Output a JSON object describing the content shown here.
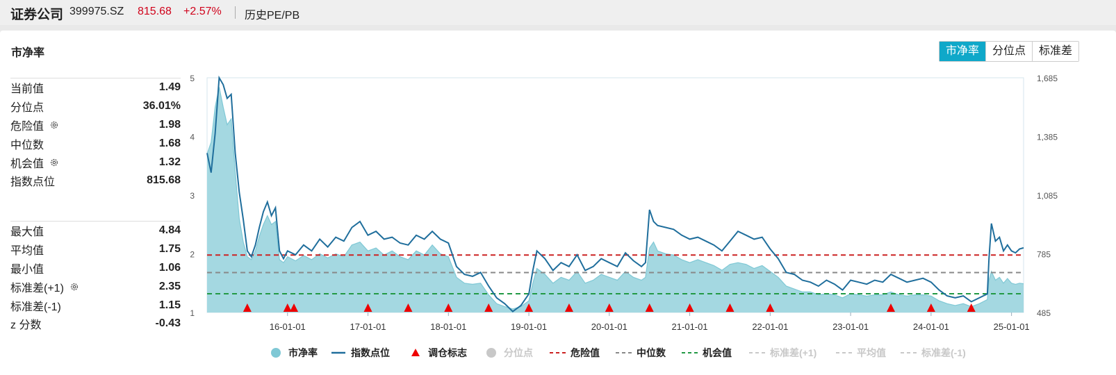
{
  "header": {
    "name": "证券公司",
    "code": "399975.SZ",
    "price": "815.68",
    "change": "+2.57%",
    "page": "历史PE/PB"
  },
  "panel": {
    "title": "市净率",
    "tabs": [
      "市净率",
      "分位点",
      "标准差"
    ],
    "active_tab": 0
  },
  "stats_top": [
    {
      "label": "当前值",
      "value": "1.49",
      "gear": false
    },
    {
      "label": "分位点",
      "value": "36.01%",
      "gear": false
    },
    {
      "label": "危险值",
      "value": "1.98",
      "gear": true
    },
    {
      "label": "中位数",
      "value": "1.68",
      "gear": false
    },
    {
      "label": "机会值",
      "value": "1.32",
      "gear": true
    },
    {
      "label": "指数点位",
      "value": "815.68",
      "gear": false
    }
  ],
  "stats_bottom": [
    {
      "label": "最大值",
      "value": "4.84",
      "gear": false
    },
    {
      "label": "平均值",
      "value": "1.75",
      "gear": false
    },
    {
      "label": "最小值",
      "value": "1.06",
      "gear": false
    },
    {
      "label": "标准差(+1)",
      "value": "2.35",
      "gear": true
    },
    {
      "label": "标准差(-1)",
      "value": "1.15",
      "gear": false
    },
    {
      "label": "z 分数",
      "value": "-0.43",
      "gear": false
    }
  ],
  "colors": {
    "area_fill": "#9fd6df",
    "area_line": "#7fc8d5",
    "index_line": "#1f6e9c",
    "marker": "#ee0000",
    "danger": "#cc2222",
    "median": "#888888",
    "opportunity": "#229944",
    "disabled": "#c8c8c8"
  },
  "chart_data": {
    "type": "line",
    "x_ticks": [
      "16-01-01",
      "17-01-01",
      "18-01-01",
      "19-01-01",
      "20-01-01",
      "21-01-01",
      "22-01-01",
      "23-01-01",
      "24-01-01",
      "25-01-01"
    ],
    "x_tick_years": [
      2016,
      2017,
      2018,
      2019,
      2020,
      2021,
      2022,
      2023,
      2024,
      2025
    ],
    "x_range": [
      2015.0,
      2025.15
    ],
    "y_left_ticks": [
      "1",
      "2",
      "3",
      "4",
      "5"
    ],
    "y_left_range": [
      1,
      5
    ],
    "y_right_ticks": [
      "485",
      "785",
      "1,085",
      "1,385",
      "1,685"
    ],
    "y_right_range": [
      485,
      1685
    ],
    "pb_series": {
      "name": "市净率",
      "points": [
        [
          2015.0,
          3.7
        ],
        [
          2015.05,
          3.9
        ],
        [
          2015.1,
          4.5
        ],
        [
          2015.15,
          4.84
        ],
        [
          2015.2,
          4.5
        ],
        [
          2015.25,
          4.2
        ],
        [
          2015.3,
          4.3
        ],
        [
          2015.35,
          3.4
        ],
        [
          2015.4,
          2.6
        ],
        [
          2015.45,
          2.2
        ],
        [
          2015.5,
          1.95
        ],
        [
          2015.55,
          1.9
        ],
        [
          2015.6,
          2.05
        ],
        [
          2015.65,
          2.3
        ],
        [
          2015.7,
          2.5
        ],
        [
          2015.75,
          2.65
        ],
        [
          2015.8,
          2.5
        ],
        [
          2015.85,
          2.55
        ],
        [
          2015.9,
          1.9
        ],
        [
          2015.95,
          1.85
        ],
        [
          2016.0,
          1.95
        ],
        [
          2016.1,
          1.88
        ],
        [
          2016.2,
          1.97
        ],
        [
          2016.3,
          1.9
        ],
        [
          2016.4,
          2.0
        ],
        [
          2016.5,
          1.93
        ],
        [
          2016.6,
          2.0
        ],
        [
          2016.7,
          1.95
        ],
        [
          2016.8,
          2.15
        ],
        [
          2016.9,
          2.2
        ],
        [
          2017.0,
          2.05
        ],
        [
          2017.1,
          2.1
        ],
        [
          2017.2,
          1.98
        ],
        [
          2017.3,
          2.05
        ],
        [
          2017.4,
          1.95
        ],
        [
          2017.5,
          1.9
        ],
        [
          2017.6,
          2.05
        ],
        [
          2017.7,
          1.98
        ],
        [
          2017.8,
          2.15
        ],
        [
          2017.9,
          2.0
        ],
        [
          2018.0,
          1.95
        ],
        [
          2018.1,
          1.6
        ],
        [
          2018.2,
          1.5
        ],
        [
          2018.3,
          1.48
        ],
        [
          2018.4,
          1.5
        ],
        [
          2018.5,
          1.3
        ],
        [
          2018.6,
          1.15
        ],
        [
          2018.7,
          1.1
        ],
        [
          2018.8,
          1.06
        ],
        [
          2018.9,
          1.1
        ],
        [
          2019.0,
          1.2
        ],
        [
          2019.05,
          1.5
        ],
        [
          2019.1,
          1.75
        ],
        [
          2019.2,
          1.65
        ],
        [
          2019.3,
          1.5
        ],
        [
          2019.4,
          1.6
        ],
        [
          2019.5,
          1.55
        ],
        [
          2019.6,
          1.7
        ],
        [
          2019.7,
          1.5
        ],
        [
          2019.8,
          1.55
        ],
        [
          2019.9,
          1.65
        ],
        [
          2020.0,
          1.6
        ],
        [
          2020.1,
          1.55
        ],
        [
          2020.2,
          1.7
        ],
        [
          2020.3,
          1.6
        ],
        [
          2020.4,
          1.55
        ],
        [
          2020.45,
          1.6
        ],
        [
          2020.5,
          2.1
        ],
        [
          2020.55,
          2.2
        ],
        [
          2020.6,
          2.05
        ],
        [
          2020.7,
          2.0
        ],
        [
          2020.8,
          1.98
        ],
        [
          2020.9,
          1.9
        ],
        [
          2021.0,
          1.85
        ],
        [
          2021.1,
          1.9
        ],
        [
          2021.2,
          1.85
        ],
        [
          2021.3,
          1.8
        ],
        [
          2021.4,
          1.72
        ],
        [
          2021.5,
          1.82
        ],
        [
          2021.6,
          1.85
        ],
        [
          2021.7,
          1.82
        ],
        [
          2021.8,
          1.75
        ],
        [
          2021.9,
          1.8
        ],
        [
          2022.0,
          1.7
        ],
        [
          2022.1,
          1.6
        ],
        [
          2022.2,
          1.45
        ],
        [
          2022.3,
          1.4
        ],
        [
          2022.4,
          1.35
        ],
        [
          2022.5,
          1.35
        ],
        [
          2022.6,
          1.3
        ],
        [
          2022.7,
          1.32
        ],
        [
          2022.8,
          1.3
        ],
        [
          2022.9,
          1.25
        ],
        [
          2023.0,
          1.32
        ],
        [
          2023.1,
          1.3
        ],
        [
          2023.2,
          1.28
        ],
        [
          2023.3,
          1.3
        ],
        [
          2023.4,
          1.3
        ],
        [
          2023.5,
          1.35
        ],
        [
          2023.6,
          1.3
        ],
        [
          2023.7,
          1.28
        ],
        [
          2023.8,
          1.3
        ],
        [
          2023.9,
          1.3
        ],
        [
          2024.0,
          1.28
        ],
        [
          2024.1,
          1.2
        ],
        [
          2024.2,
          1.15
        ],
        [
          2024.3,
          1.12
        ],
        [
          2024.4,
          1.15
        ],
        [
          2024.5,
          1.1
        ],
        [
          2024.6,
          1.15
        ],
        [
          2024.7,
          1.22
        ],
        [
          2024.72,
          1.55
        ],
        [
          2024.75,
          1.7
        ],
        [
          2024.8,
          1.55
        ],
        [
          2024.85,
          1.6
        ],
        [
          2024.9,
          1.5
        ],
        [
          2024.95,
          1.58
        ],
        [
          2025.0,
          1.5
        ],
        [
          2025.05,
          1.48
        ],
        [
          2025.1,
          1.5
        ],
        [
          2025.15,
          1.49
        ]
      ]
    },
    "index_series": {
      "name": "指数点位",
      "points": [
        [
          2015.0,
          1300
        ],
        [
          2015.05,
          1200
        ],
        [
          2015.1,
          1400
        ],
        [
          2015.15,
          1685
        ],
        [
          2015.2,
          1650
        ],
        [
          2015.25,
          1580
        ],
        [
          2015.3,
          1600
        ],
        [
          2015.35,
          1300
        ],
        [
          2015.4,
          1100
        ],
        [
          2015.45,
          960
        ],
        [
          2015.5,
          800
        ],
        [
          2015.55,
          770
        ],
        [
          2015.6,
          830
        ],
        [
          2015.65,
          920
        ],
        [
          2015.7,
          1000
        ],
        [
          2015.75,
          1050
        ],
        [
          2015.8,
          980
        ],
        [
          2015.85,
          1020
        ],
        [
          2015.9,
          800
        ],
        [
          2015.95,
          760
        ],
        [
          2016.0,
          800
        ],
        [
          2016.1,
          780
        ],
        [
          2016.2,
          830
        ],
        [
          2016.3,
          800
        ],
        [
          2016.4,
          860
        ],
        [
          2016.5,
          820
        ],
        [
          2016.6,
          870
        ],
        [
          2016.7,
          850
        ],
        [
          2016.8,
          920
        ],
        [
          2016.9,
          950
        ],
        [
          2017.0,
          880
        ],
        [
          2017.1,
          900
        ],
        [
          2017.2,
          860
        ],
        [
          2017.3,
          870
        ],
        [
          2017.4,
          840
        ],
        [
          2017.5,
          830
        ],
        [
          2017.6,
          880
        ],
        [
          2017.7,
          860
        ],
        [
          2017.8,
          900
        ],
        [
          2017.9,
          860
        ],
        [
          2018.0,
          840
        ],
        [
          2018.1,
          720
        ],
        [
          2018.2,
          680
        ],
        [
          2018.3,
          670
        ],
        [
          2018.4,
          690
        ],
        [
          2018.5,
          620
        ],
        [
          2018.6,
          560
        ],
        [
          2018.7,
          530
        ],
        [
          2018.8,
          490
        ],
        [
          2018.9,
          520
        ],
        [
          2019.0,
          580
        ],
        [
          2019.05,
          700
        ],
        [
          2019.1,
          800
        ],
        [
          2019.2,
          760
        ],
        [
          2019.3,
          700
        ],
        [
          2019.4,
          740
        ],
        [
          2019.5,
          720
        ],
        [
          2019.6,
          780
        ],
        [
          2019.7,
          700
        ],
        [
          2019.8,
          720
        ],
        [
          2019.9,
          760
        ],
        [
          2020.0,
          740
        ],
        [
          2020.1,
          720
        ],
        [
          2020.2,
          790
        ],
        [
          2020.3,
          750
        ],
        [
          2020.4,
          720
        ],
        [
          2020.45,
          740
        ],
        [
          2020.5,
          1010
        ],
        [
          2020.55,
          950
        ],
        [
          2020.6,
          930
        ],
        [
          2020.7,
          920
        ],
        [
          2020.8,
          910
        ],
        [
          2020.9,
          880
        ],
        [
          2021.0,
          860
        ],
        [
          2021.1,
          870
        ],
        [
          2021.2,
          850
        ],
        [
          2021.3,
          830
        ],
        [
          2021.4,
          800
        ],
        [
          2021.5,
          850
        ],
        [
          2021.6,
          900
        ],
        [
          2021.7,
          880
        ],
        [
          2021.8,
          860
        ],
        [
          2021.9,
          870
        ],
        [
          2022.0,
          810
        ],
        [
          2022.1,
          760
        ],
        [
          2022.2,
          690
        ],
        [
          2022.3,
          680
        ],
        [
          2022.4,
          650
        ],
        [
          2022.5,
          640
        ],
        [
          2022.6,
          620
        ],
        [
          2022.7,
          650
        ],
        [
          2022.8,
          630
        ],
        [
          2022.9,
          600
        ],
        [
          2023.0,
          650
        ],
        [
          2023.1,
          640
        ],
        [
          2023.2,
          630
        ],
        [
          2023.3,
          650
        ],
        [
          2023.4,
          640
        ],
        [
          2023.5,
          680
        ],
        [
          2023.6,
          660
        ],
        [
          2023.7,
          640
        ],
        [
          2023.8,
          650
        ],
        [
          2023.9,
          660
        ],
        [
          2024.0,
          640
        ],
        [
          2024.1,
          600
        ],
        [
          2024.2,
          570
        ],
        [
          2024.3,
          560
        ],
        [
          2024.4,
          570
        ],
        [
          2024.5,
          540
        ],
        [
          2024.6,
          560
        ],
        [
          2024.7,
          580
        ],
        [
          2024.72,
          760
        ],
        [
          2024.75,
          940
        ],
        [
          2024.8,
          850
        ],
        [
          2024.85,
          870
        ],
        [
          2024.9,
          800
        ],
        [
          2024.95,
          830
        ],
        [
          2025.0,
          800
        ],
        [
          2025.05,
          790
        ],
        [
          2025.1,
          810
        ],
        [
          2025.15,
          815.68
        ]
      ]
    },
    "reference_lines": [
      {
        "name": "危险值",
        "value": 1.98
      },
      {
        "name": "中位数",
        "value": 1.68
      },
      {
        "name": "机会值",
        "value": 1.32
      }
    ],
    "markers": {
      "name": "调仓标志",
      "x": [
        2015.5,
        2016.0,
        2016.08,
        2017.0,
        2017.5,
        2018.0,
        2018.5,
        2019.0,
        2019.5,
        2020.0,
        2020.5,
        2021.0,
        2021.5,
        2022.0,
        2023.5,
        2024.0,
        2024.5
      ]
    },
    "legend": [
      {
        "label": "市净率",
        "symbol": "circle",
        "active": true
      },
      {
        "label": "指数点位",
        "symbol": "line",
        "active": true
      },
      {
        "label": "调仓标志",
        "symbol": "triangle",
        "active": true
      },
      {
        "label": "分位点",
        "symbol": "circle",
        "active": false
      },
      {
        "label": "危险值",
        "symbol": "dash-red",
        "active": true
      },
      {
        "label": "中位数",
        "symbol": "dash-gray",
        "active": true
      },
      {
        "label": "机会值",
        "symbol": "dash-green",
        "active": true
      },
      {
        "label": "标准差(+1)",
        "symbol": "dash",
        "active": false
      },
      {
        "label": "平均值",
        "symbol": "dash",
        "active": false
      },
      {
        "label": "标准差(-1)",
        "symbol": "dash",
        "active": false
      }
    ],
    "legend_placement": "bottom"
  }
}
